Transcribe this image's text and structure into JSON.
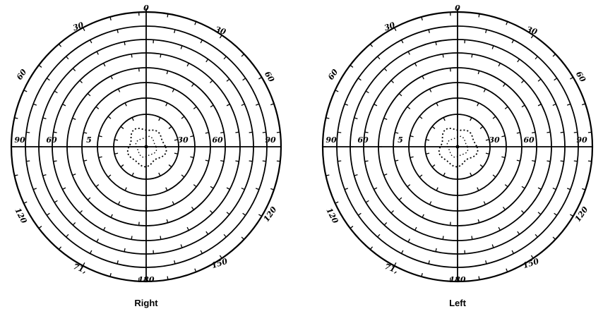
{
  "charts": [
    {
      "caption": "Right",
      "labels": {
        "top": "0",
        "upper_left": "30",
        "upper_right": "30",
        "left": "60",
        "right": "60",
        "horiz_far_left": "90",
        "horiz_left": "60",
        "horiz_inner_left": "5",
        "horiz_inner_right": "30",
        "horiz_right": "60",
        "horiz_far_right": "90",
        "lower_left": "120",
        "lower_right": "120",
        "bottom_left": "71,",
        "bottom_right": "150",
        "bottom": "180"
      }
    },
    {
      "caption": "Left",
      "labels": {
        "top": "0",
        "upper_left": "30",
        "upper_right": "30",
        "left": "60",
        "right": "60",
        "horiz_far_left": "90",
        "horiz_left": "60",
        "horiz_inner_left": "5",
        "horiz_inner_right": "30",
        "horiz_right": "60",
        "horiz_far_right": "90",
        "lower_left": "120",
        "lower_right": "120",
        "bottom_left": "71,",
        "bottom_right": "150",
        "bottom": "180"
      }
    }
  ],
  "colors": {
    "ink": "#000000",
    "paper": "#ffffff"
  }
}
